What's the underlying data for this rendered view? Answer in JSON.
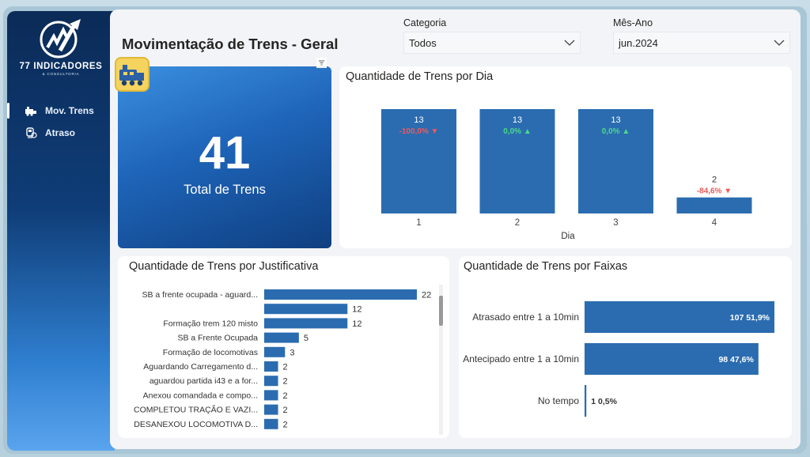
{
  "brand": {
    "name": "77 INDICADORES",
    "subtitle": "& CONSULTORIA"
  },
  "nav": {
    "items": [
      {
        "label": "Mov. Trens",
        "icon": "train-icon",
        "active": true
      },
      {
        "label": "Atraso",
        "icon": "train-delay-icon",
        "active": false
      }
    ]
  },
  "page": {
    "title": "Movimentação de Trens - Geral"
  },
  "filters": {
    "categoria": {
      "label": "Categoria",
      "value": "Todos"
    },
    "mes_ano": {
      "label": "Mês-Ano",
      "value": "jun.2024"
    }
  },
  "kpi": {
    "value": "41",
    "label": "Total de Trens",
    "icon": "train-badge-icon"
  },
  "colors": {
    "bar": "#2b6cb0",
    "up": "#4dd98a",
    "down": "#ef5a5a",
    "sidebar_top": "#0b2b57",
    "sidebar_bottom": "#5aa4ee"
  },
  "chart_data": [
    {
      "type": "bar",
      "title": "Quantidade de Trens por Dia",
      "xlabel": "Dia",
      "categories": [
        "1",
        "2",
        "3",
        "4"
      ],
      "values": [
        13,
        13,
        13,
        2
      ],
      "value_labels": [
        "13",
        "13",
        "13",
        "2"
      ],
      "deltas": [
        {
          "text": "-100,0%",
          "direction": "down"
        },
        {
          "text": "0,0%",
          "direction": "up"
        },
        {
          "text": "0,0%",
          "direction": "up"
        },
        {
          "text": "-84,6%",
          "direction": "down"
        }
      ],
      "ylim": [
        0,
        13
      ]
    },
    {
      "type": "bar",
      "orientation": "horizontal",
      "title": "Quantidade de Trens por Justificativa",
      "categories": [
        "SB a frente ocupada - aguard...",
        "",
        "Formação trem 120 misto",
        "SB a Frente Ocupada",
        "Formação de locomotivas",
        "Aguardando Carregamento d...",
        "aguardou partida i43 e a for...",
        "Anexou comandada e compo...",
        "COMPLETOU TRAÇÃO E VAZI...",
        "DESANEXOU LOCOMOTIVA D..."
      ],
      "values": [
        22,
        12,
        12,
        5,
        3,
        2,
        2,
        2,
        2,
        2
      ],
      "xlim": [
        0,
        22
      ]
    },
    {
      "type": "bar",
      "orientation": "horizontal",
      "title": "Quantidade de Trens por Faixas",
      "categories": [
        "Atrasado entre 1 a 10min",
        "Antecipado entre 1 a 10min",
        "No tempo"
      ],
      "values": [
        107,
        98,
        1
      ],
      "value_labels": [
        "107 51,9%",
        "98 47,6%",
        "1 0,5%"
      ],
      "xlim": [
        0,
        107
      ]
    }
  ]
}
